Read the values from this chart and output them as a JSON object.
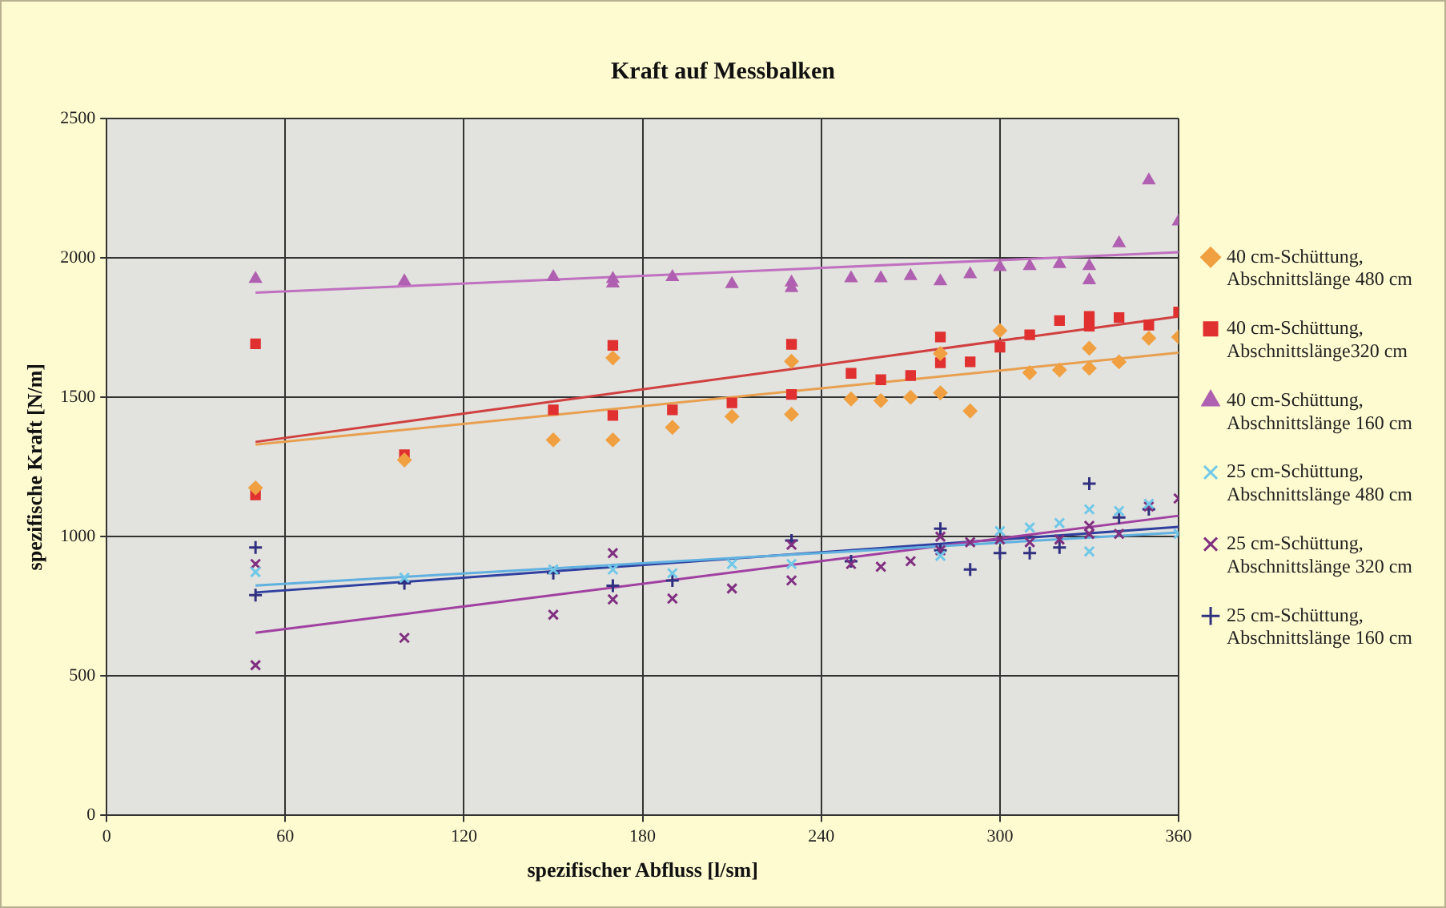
{
  "chart_data": {
    "type": "scatter",
    "title": "Kraft auf Messbalken",
    "xlabel": "spezifischer Abfluss [l/sm]",
    "ylabel": "spezifische Kraft [N/m]",
    "xlim": [
      0,
      360
    ],
    "xticks": [
      0,
      60,
      120,
      180,
      240,
      300,
      360
    ],
    "ylim": [
      0,
      2500
    ],
    "yticks": [
      0,
      500,
      1000,
      1500,
      2000,
      2500
    ],
    "grid": true,
    "legend": "right",
    "series": [
      {
        "name": "40 cm-Schüttung, Abschnittslänge 480 cm",
        "color": "#f0a040",
        "marker": "diamond",
        "x": [
          50,
          100,
          150,
          170,
          170,
          190,
          210,
          230,
          230,
          250,
          260,
          270,
          280,
          280,
          290,
          300,
          310,
          320,
          330,
          330,
          340,
          350,
          360
        ],
        "values": [
          1175,
          1275,
          1347,
          1641,
          1347,
          1392,
          1431,
          1629,
          1439,
          1494,
          1488,
          1500,
          1516,
          1657,
          1451,
          1739,
          1588,
          1598,
          1676,
          1604,
          1627,
          1712,
          1716
        ]
      },
      {
        "name": "40 cm-Schüttung, Abschnittslänge320 cm",
        "color": "#e03030",
        "marker": "square",
        "x": [
          50,
          50,
          100,
          150,
          170,
          170,
          190,
          210,
          230,
          230,
          250,
          260,
          270,
          280,
          280,
          290,
          300,
          310,
          320,
          330,
          330,
          340,
          350,
          360
        ],
        "values": [
          1692,
          1150,
          1294,
          1455,
          1686,
          1435,
          1455,
          1480,
          1690,
          1510,
          1586,
          1563,
          1578,
          1716,
          1624,
          1627,
          1680,
          1724,
          1775,
          1790,
          1755,
          1786,
          1759,
          1806
        ]
      },
      {
        "name": "40 cm-Schüttung, Abschnittslänge 160 cm",
        "color": "#b060b0",
        "marker": "triangle",
        "x": [
          50,
          100,
          150,
          170,
          170,
          190,
          210,
          230,
          230,
          250,
          260,
          270,
          280,
          290,
          300,
          310,
          320,
          330,
          330,
          340,
          350,
          360
        ],
        "values": [
          1925,
          1916,
          1931,
          1925,
          1908,
          1931,
          1906,
          1912,
          1892,
          1927,
          1927,
          1935,
          1916,
          1941,
          1967,
          1971,
          1978,
          1971,
          1920,
          2053,
          2278,
          2131
        ]
      },
      {
        "name": "25 cm-Schüttung, Abschnittslänge 480 cm",
        "color": "#70c8e8",
        "marker": "cross",
        "x": [
          50,
          100,
          150,
          170,
          190,
          210,
          230,
          280,
          300,
          310,
          320,
          330,
          330,
          340,
          350,
          360
        ],
        "values": [
          873,
          853,
          882,
          882,
          869,
          902,
          902,
          931,
          1020,
          1033,
          1049,
          1098,
          947,
          1092,
          1118,
          1010
        ]
      },
      {
        "name": "25 cm-Schüttung, Abschnittslänge 320 cm",
        "color": "#803080",
        "marker": "cross",
        "x": [
          50,
          50,
          100,
          150,
          170,
          170,
          190,
          210,
          230,
          230,
          250,
          260,
          270,
          280,
          280,
          290,
          300,
          310,
          320,
          330,
          330,
          340,
          350,
          360
        ],
        "values": [
          902,
          539,
          637,
          720,
          941,
          775,
          778,
          814,
          971,
          843,
          902,
          892,
          912,
          1000,
          951,
          980,
          990,
          980,
          990,
          1039,
          1010,
          1010,
          1108,
          1137
        ]
      },
      {
        "name": "25 cm-Schüttung, Abschnittslänge 160 cm",
        "color": "#303080",
        "marker": "plus",
        "x": [
          50,
          50,
          100,
          150,
          170,
          190,
          230,
          250,
          280,
          280,
          290,
          300,
          310,
          320,
          330,
          340,
          350
        ],
        "values": [
          961,
          790,
          833,
          869,
          824,
          843,
          986,
          912,
          1029,
          951,
          882,
          941,
          941,
          961,
          1190,
          1069,
          1098
        ]
      },
      {
        "type": "line",
        "color": "#e8a050",
        "marker": "none",
        "x": [
          50,
          360
        ],
        "values": [
          1330,
          1660
        ]
      },
      {
        "type": "line",
        "color": "#d04040",
        "marker": "none",
        "x": [
          50,
          360
        ],
        "values": [
          1340,
          1790
        ]
      },
      {
        "type": "line",
        "color": "#c070c0",
        "marker": "none",
        "x": [
          50,
          360
        ],
        "values": [
          1875,
          2020
        ]
      },
      {
        "type": "line",
        "color": "#60b0e0",
        "marker": "none",
        "x": [
          50,
          360
        ],
        "values": [
          825,
          1015
        ]
      },
      {
        "type": "line",
        "color": "#a040a0",
        "marker": "none",
        "x": [
          50,
          360
        ],
        "values": [
          655,
          1075
        ]
      },
      {
        "type": "line",
        "color": "#3040a0",
        "marker": "none",
        "x": [
          50,
          360
        ],
        "values": [
          800,
          1035
        ]
      }
    ]
  }
}
